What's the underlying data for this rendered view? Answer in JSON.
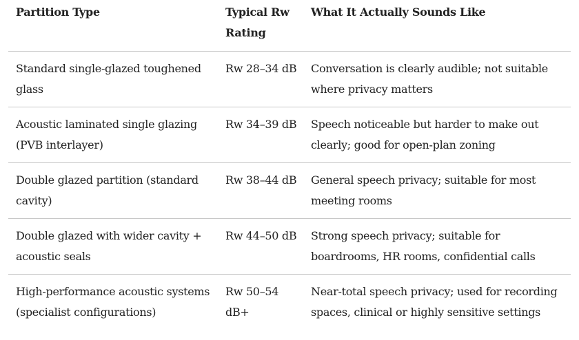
{
  "table": {
    "headers": [
      "Partition Type",
      "Typical Rw Rating",
      "What It Actually Sounds Like"
    ],
    "rows": [
      {
        "type": "Standard single-glazed toughened glass",
        "rating": "Rw 28–34 dB",
        "sound": "Conversation is clearly audible; not suitable where privacy matters"
      },
      {
        "type": "Acoustic laminated single glazing (PVB interlayer)",
        "rating": "Rw 34–39 dB",
        "sound": "Speech noticeable but harder to make out clearly; good for open-plan zoning"
      },
      {
        "type": "Double glazed partition (standard cavity)",
        "rating": "Rw 38–44 dB",
        "sound": "General speech privacy; suitable for most meeting rooms"
      },
      {
        "type": "Double glazed with wider cavity + acoustic seals",
        "rating": "Rw 44–50 dB",
        "sound": "Strong speech privacy; suitable for boardrooms, HR rooms, confidential calls"
      },
      {
        "type": "High-performance acoustic systems (specialist configurations)",
        "rating": "Rw 50–54 dB+",
        "sound": "Near-total speech privacy; used for recording spaces, clinical or highly sensitive settings"
      }
    ]
  }
}
